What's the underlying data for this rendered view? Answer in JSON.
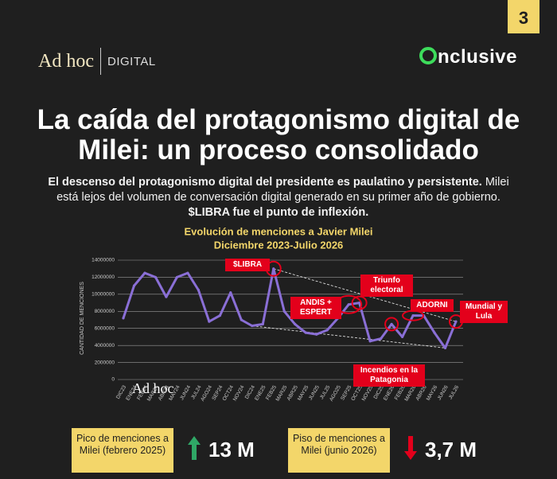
{
  "page_number": "3",
  "brand": "Ad hoc",
  "brand_suffix": "DIGITAL",
  "partner": "nclusive",
  "headline": "La caída del protagonismo digital de Milei: un proceso consolidado",
  "intro": [
    {
      "text": "El descenso del protagonismo digital del presidente es paulatino y persistente.",
      "bold": true
    },
    {
      "text": " Milei está lejos del volumen de conversación digital generado en su primer año de gobierno. ",
      "bold": false
    },
    {
      "text": "$LIBRA fue el punto de inflexión.",
      "bold": true
    }
  ],
  "chart_data": {
    "type": "line",
    "title": "Evolución de menciones a Javier Milei",
    "subtitle": "Diciembre 2023-Julio 2026",
    "y_label": "CANTIDAD DE MENCIONES",
    "watermark": "Ad hoc",
    "categories": [
      "DIC23",
      "ENE24",
      "FEB24",
      "MAR24",
      "ABR24",
      "MAY24",
      "JUN24",
      "JUL24",
      "AGO24",
      "SEP24",
      "OCT24",
      "NOV24",
      "DIC24",
      "ENE25",
      "FEB25",
      "MAR25",
      "ABR25",
      "MAY25",
      "JUN25",
      "JUL25",
      "AGO25",
      "SEP25",
      "OCT25",
      "NOV25",
      "DIC25",
      "ENE26",
      "FEB26",
      "MAR26",
      "ABR26",
      "MAY26",
      "JUN26",
      "JUL26"
    ],
    "series": [
      {
        "name": "Menciones",
        "color": "#8a6fd6",
        "values": [
          7200000,
          11000000,
          12500000,
          12000000,
          9700000,
          12000000,
          12500000,
          10500000,
          6800000,
          7500000,
          10200000,
          7000000,
          6300000,
          6500000,
          13000000,
          8000000,
          6500000,
          5500000,
          5300000,
          5800000,
          7200000,
          8800000,
          9000000,
          4500000,
          4800000,
          6500000,
          5000000,
          7500000,
          7500000,
          5500000,
          3700000,
          6800000
        ]
      }
    ],
    "ylim": [
      0,
      14000000
    ],
    "yticks": [
      0,
      2000000,
      4000000,
      6000000,
      8000000,
      10000000,
      12000000,
      14000000
    ],
    "grid": true,
    "annotations": [
      "$LIBRA",
      "Triunfo electoral",
      "ANDIS + ESPERT",
      "ADORNI",
      "Incendios en la Patagonia",
      "Mundial y Lula"
    ]
  },
  "stats": [
    {
      "label": "Pico de menciones a Milei (febrero 2025)",
      "value": "13 M"
    },
    {
      "label": "Piso de menciones a Milei (junio 2026)",
      "value": "3,7 M"
    }
  ]
}
